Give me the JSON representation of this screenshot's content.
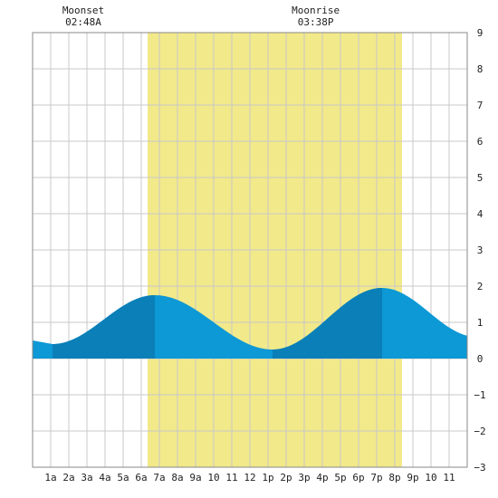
{
  "chart_data": {
    "type": "area",
    "title": "",
    "xlabel": "",
    "ylabel": "",
    "x_range_hours": [
      0,
      24
    ],
    "ylim": [
      -3,
      9
    ],
    "y_ticks": [
      -3,
      -2,
      -1,
      0,
      1,
      2,
      3,
      4,
      5,
      6,
      7,
      8,
      9
    ],
    "x_tick_labels": [
      "1a",
      "2a",
      "3a",
      "4a",
      "5a",
      "6a",
      "7a",
      "8a",
      "9a",
      "10",
      "11",
      "12",
      "1p",
      "2p",
      "3p",
      "4p",
      "5p",
      "6p",
      "7p",
      "8p",
      "9p",
      "10",
      "11"
    ],
    "x_tick_hours": [
      1,
      2,
      3,
      4,
      5,
      6,
      7,
      8,
      9,
      10,
      11,
      12,
      13,
      14,
      15,
      16,
      17,
      18,
      19,
      20,
      21,
      22,
      23
    ],
    "grid": true,
    "daylight": {
      "start_hour": 6.35,
      "end_hour": 20.4,
      "color": "#f2e98a"
    },
    "tide_extrema": [
      {
        "hour": 1.1,
        "value": 0.4
      },
      {
        "hour": 6.75,
        "value": 1.75
      },
      {
        "hour": 13.25,
        "value": 0.25
      },
      {
        "hour": 19.3,
        "value": 1.95
      },
      {
        "hour": 24.5,
        "value": 0.6
      }
    ],
    "tide_start": {
      "hour": 0,
      "value": 0.5
    },
    "dark_bands": [
      {
        "start_hour": 1.1,
        "end_hour": 6.75
      },
      {
        "start_hour": 13.25,
        "end_hour": 19.3
      }
    ],
    "colors": {
      "tide": "#0d98d6",
      "tide_dark": "#0a7fb8",
      "grid": "#c8c8c8"
    },
    "moon_events": [
      {
        "label": "Moonset",
        "time": "02:48A",
        "hour": 2.8
      },
      {
        "label": "Moonrise",
        "time": "03:38P",
        "hour": 15.63
      }
    ]
  }
}
